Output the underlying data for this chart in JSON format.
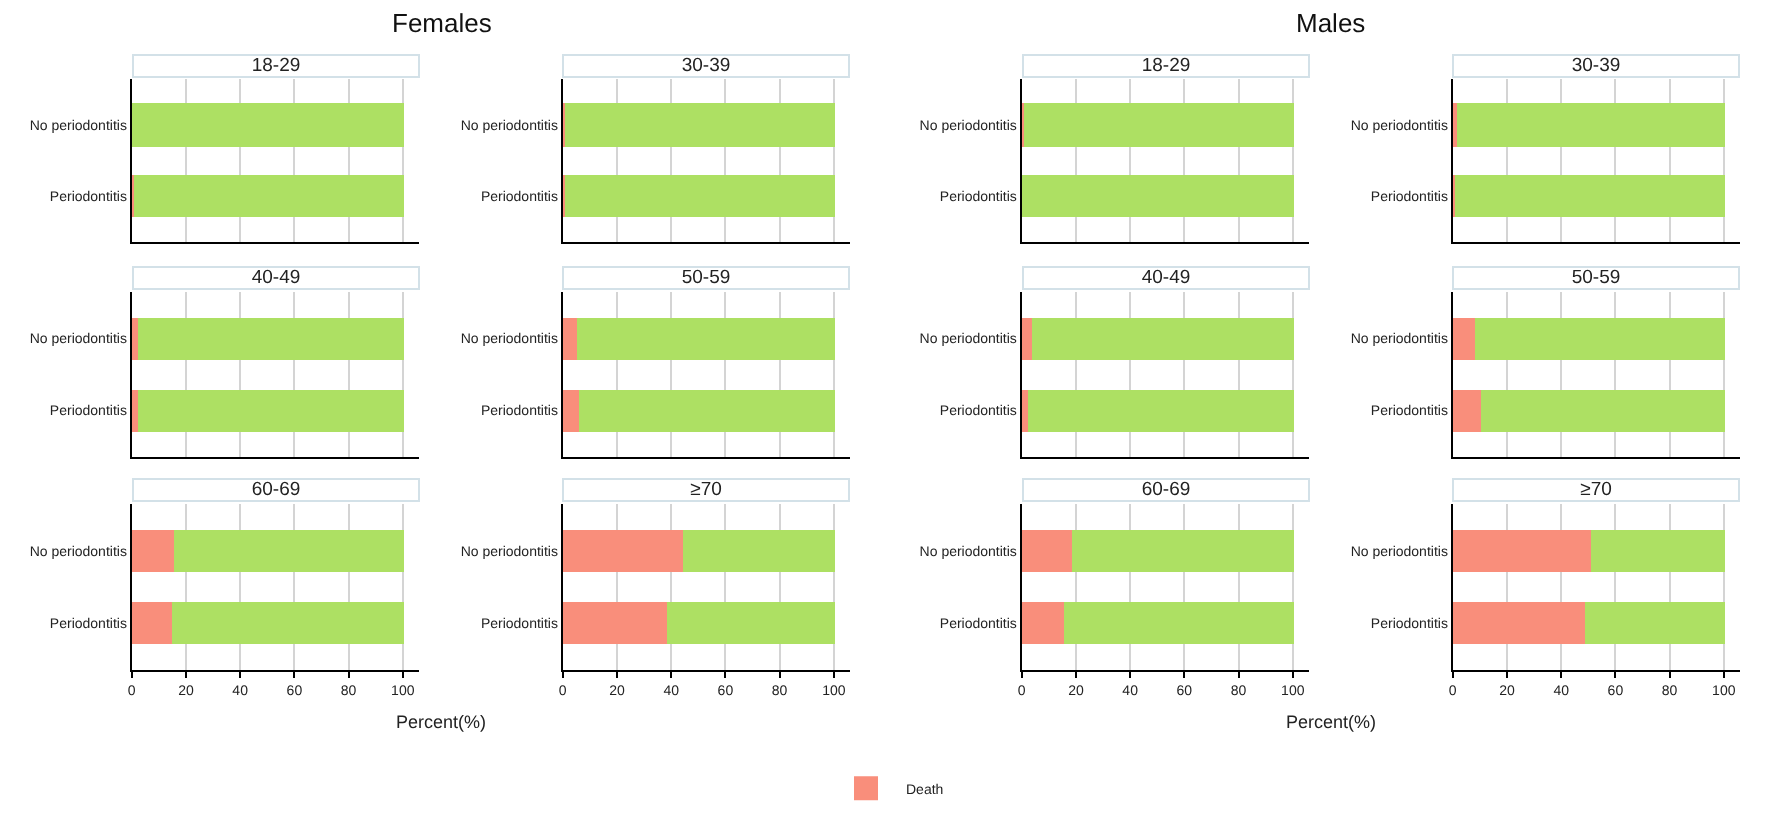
{
  "chart_data": [
    {
      "type": "bar",
      "orientation": "horizontal",
      "stacked": true,
      "title": "18-29",
      "annotations": [
        "Females"
      ],
      "categories": [
        "No periodontitis",
        "Periodontitis"
      ],
      "series": [
        {
          "color": "#f98e7b",
          "values": [
            0,
            0.5
          ]
        },
        {
          "color": "#ade063",
          "values": [
            100,
            99.5
          ]
        }
      ],
      "xlim": [
        0,
        106
      ],
      "xticks": [
        0,
        20,
        40,
        60,
        80,
        100
      ],
      "grid": "x",
      "tick_labels": "y"
    },
    {
      "type": "bar",
      "orientation": "horizontal",
      "stacked": true,
      "title": "30-39",
      "categories": [
        "No periodontitis",
        "Periodontitis"
      ],
      "series": [
        {
          "color": "#f98e7b",
          "values": [
            0.5,
            0.5
          ]
        },
        {
          "color": "#ade063",
          "values": [
            99.5,
            99.5
          ]
        }
      ],
      "xlim": [
        0,
        106
      ],
      "xticks": [
        0,
        20,
        40,
        60,
        80,
        100
      ],
      "grid": "x",
      "tick_labels": "y"
    },
    {
      "type": "bar",
      "orientation": "horizontal",
      "stacked": true,
      "title": "40-49",
      "categories": [
        "No periodontitis",
        "Periodontitis"
      ],
      "series": [
        {
          "color": "#f98e7b",
          "values": [
            2.5,
            2.5
          ]
        },
        {
          "color": "#ade063",
          "values": [
            97.5,
            97.5
          ]
        }
      ],
      "xlim": [
        0,
        106
      ],
      "xticks": [
        0,
        20,
        40,
        60,
        80,
        100
      ],
      "grid": "x",
      "tick_labels": "y"
    },
    {
      "type": "bar",
      "orientation": "horizontal",
      "stacked": true,
      "title": "50-59",
      "categories": [
        "No periodontitis",
        "Periodontitis"
      ],
      "series": [
        {
          "color": "#f98e7b",
          "values": [
            5.5,
            6
          ]
        },
        {
          "color": "#ade063",
          "values": [
            94.5,
            94
          ]
        }
      ],
      "xlim": [
        0,
        106
      ],
      "xticks": [
        0,
        20,
        40,
        60,
        80,
        100
      ],
      "grid": "x",
      "tick_labels": "y"
    },
    {
      "type": "bar",
      "orientation": "horizontal",
      "stacked": true,
      "title": "60-69",
      "xlabel": "Percent(%)",
      "categories": [
        "No periodontitis",
        "Periodontitis"
      ],
      "series": [
        {
          "color": "#f98e7b",
          "values": [
            15.5,
            14.5
          ]
        },
        {
          "color": "#ade063",
          "values": [
            84.5,
            85.5
          ]
        }
      ],
      "xlim": [
        0,
        106
      ],
      "xticks": [
        0,
        20,
        40,
        60,
        80,
        100
      ],
      "grid": "x"
    },
    {
      "type": "bar",
      "orientation": "horizontal",
      "stacked": true,
      "title": "≥70",
      "categories": [
        "No periodontitis",
        "Periodontitis"
      ],
      "series": [
        {
          "name": "Death",
          "color": "#f98e7b",
          "values": [
            44,
            38.5
          ]
        },
        {
          "color": "#ade063",
          "values": [
            56,
            61.5
          ]
        }
      ],
      "xlim": [
        0,
        106
      ],
      "xticks": [
        0,
        20,
        40,
        60,
        80,
        100
      ],
      "grid": "x",
      "legend": "bottom"
    },
    {
      "type": "bar",
      "orientation": "horizontal",
      "stacked": true,
      "title": "18-29",
      "annotations": [
        "Males"
      ],
      "categories": [
        "No periodontitis",
        "Periodontitis"
      ],
      "series": [
        {
          "color": "#f98e7b",
          "values": [
            0.5,
            0
          ]
        },
        {
          "color": "#ade063",
          "values": [
            99.5,
            100
          ]
        }
      ],
      "xlim": [
        0,
        106
      ],
      "xticks": [
        0,
        20,
        40,
        60,
        80,
        100
      ],
      "grid": "x",
      "tick_labels": "y"
    },
    {
      "type": "bar",
      "orientation": "horizontal",
      "stacked": true,
      "title": "30-39",
      "categories": [
        "No periodontitis",
        "Periodontitis"
      ],
      "series": [
        {
          "color": "#f98e7b",
          "values": [
            1.5,
            0.5
          ]
        },
        {
          "color": "#ade063",
          "values": [
            98.5,
            99.5
          ]
        }
      ],
      "xlim": [
        0,
        106
      ],
      "xticks": [
        0,
        20,
        40,
        60,
        80,
        100
      ],
      "grid": "x",
      "tick_labels": "y"
    },
    {
      "type": "bar",
      "orientation": "horizontal",
      "stacked": true,
      "title": "40-49",
      "categories": [
        "No periodontitis",
        "Periodontitis"
      ],
      "series": [
        {
          "color": "#f98e7b",
          "values": [
            3.5,
            2.5
          ]
        },
        {
          "color": "#ade063",
          "values": [
            96.5,
            97.5
          ]
        }
      ],
      "xlim": [
        0,
        106
      ],
      "xticks": [
        0,
        20,
        40,
        60,
        80,
        100
      ],
      "grid": "x",
      "tick_labels": "y"
    },
    {
      "type": "bar",
      "orientation": "horizontal",
      "stacked": true,
      "title": "50-59",
      "categories": [
        "No periodontitis",
        "Periodontitis"
      ],
      "series": [
        {
          "color": "#f98e7b",
          "values": [
            8,
            10
          ]
        },
        {
          "color": "#ade063",
          "values": [
            92,
            90
          ]
        }
      ],
      "xlim": [
        0,
        106
      ],
      "xticks": [
        0,
        20,
        40,
        60,
        80,
        100
      ],
      "grid": "x",
      "tick_labels": "y"
    },
    {
      "type": "bar",
      "orientation": "horizontal",
      "stacked": true,
      "title": "60-69",
      "xlabel": "Percent(%)",
      "categories": [
        "No periodontitis",
        "Periodontitis"
      ],
      "series": [
        {
          "color": "#f98e7b",
          "values": [
            18.5,
            15.5
          ]
        },
        {
          "color": "#ade063",
          "values": [
            81.5,
            84.5
          ]
        }
      ],
      "xlim": [
        0,
        106
      ],
      "xticks": [
        0,
        20,
        40,
        60,
        80,
        100
      ],
      "grid": "x"
    },
    {
      "type": "bar",
      "orientation": "horizontal",
      "stacked": true,
      "title": "≥70",
      "categories": [
        "No periodontitis",
        "Periodontitis"
      ],
      "series": [
        {
          "color": "#f98e7b",
          "values": [
            51,
            49
          ]
        },
        {
          "color": "#ade063",
          "values": [
            49,
            51
          ]
        }
      ],
      "xlim": [
        0,
        106
      ],
      "xticks": [
        0,
        20,
        40,
        60,
        80,
        100
      ],
      "grid": "x"
    }
  ]
}
